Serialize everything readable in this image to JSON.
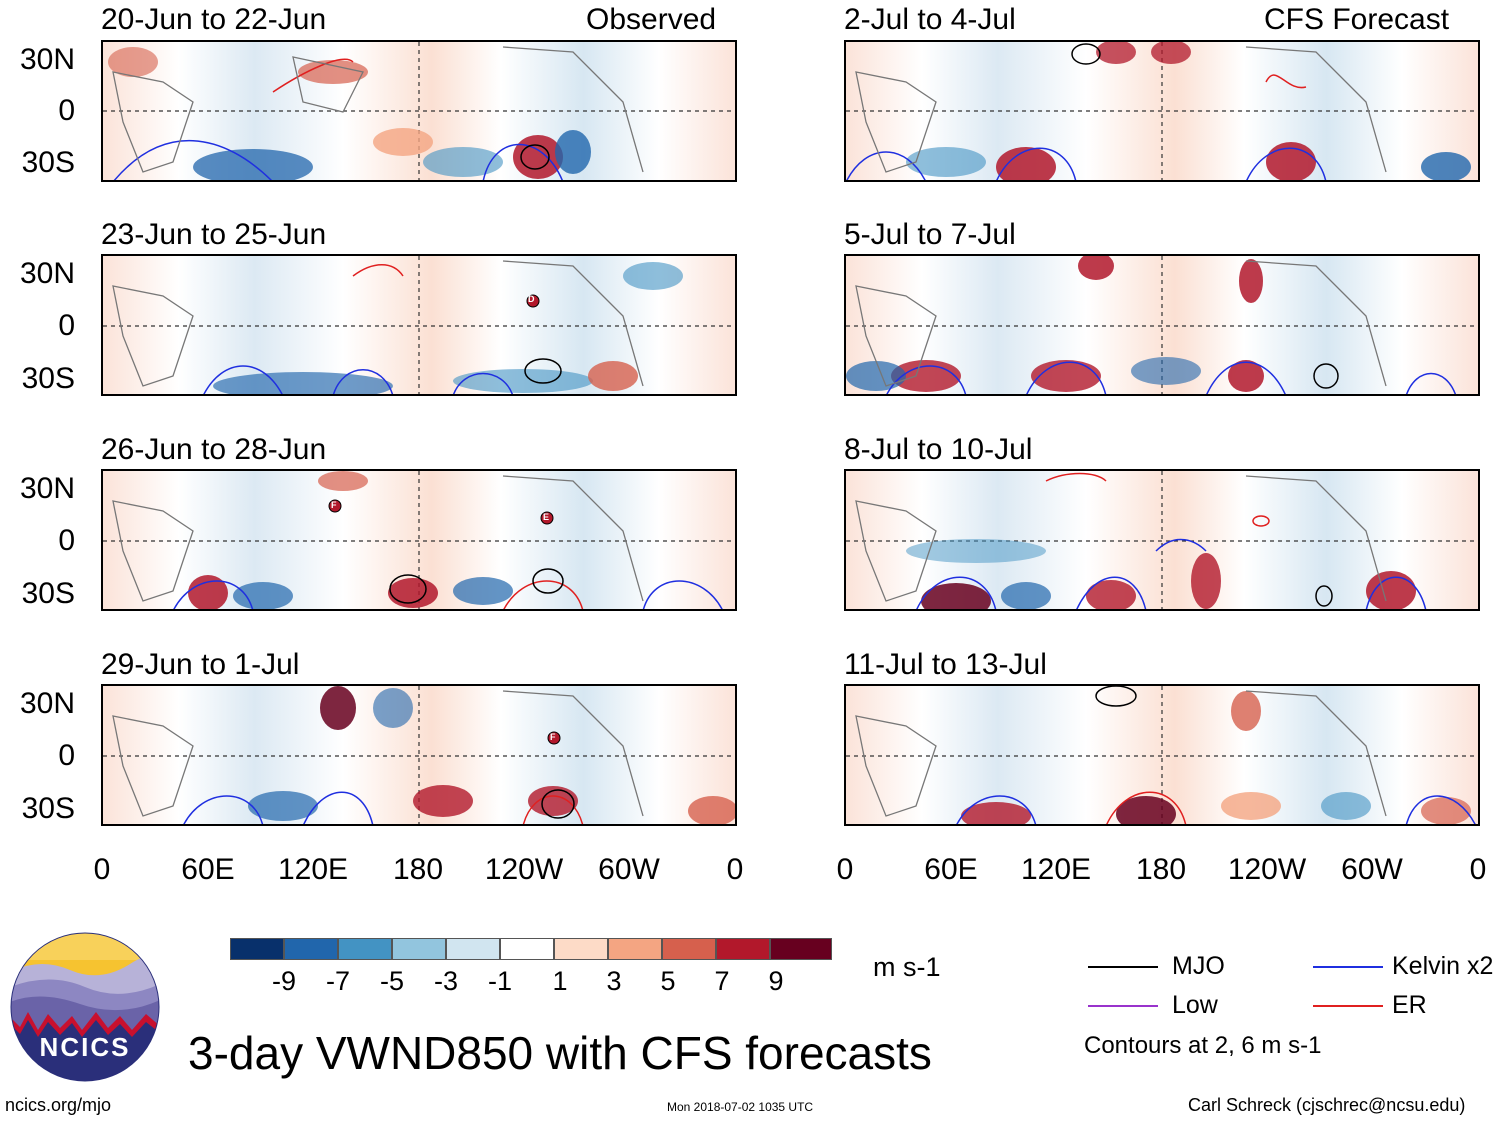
{
  "observed_label": "Observed",
  "forecast_label": "CFS Forecast",
  "panels_observed": [
    {
      "title": "20-Jun to 22-Jun"
    },
    {
      "title": "23-Jun to 25-Jun"
    },
    {
      "title": "26-Jun to 28-Jun"
    },
    {
      "title": "29-Jun to 1-Jul"
    }
  ],
  "panels_forecast": [
    {
      "title": "2-Jul to 4-Jul"
    },
    {
      "title": "5-Jul to 7-Jul"
    },
    {
      "title": "8-Jul to 10-Jul"
    },
    {
      "title": "11-Jul to 13-Jul"
    }
  ],
  "y_labels": [
    "30N",
    "0",
    "30S"
  ],
  "x_labels": [
    "0",
    "60E",
    "120E",
    "180",
    "120W",
    "60W",
    "0"
  ],
  "colorbar": {
    "colors": [
      "#08306b",
      "#2166ac",
      "#4393c3",
      "#92c5de",
      "#d1e5f0",
      "#ffffff",
      "#fddbc7",
      "#f4a582",
      "#d6604d",
      "#b2182b",
      "#67001f"
    ],
    "labels": [
      "-9",
      "-7",
      "-5",
      "-3",
      "-1",
      "1",
      "3",
      "5",
      "7",
      "9"
    ],
    "units": "m s-1"
  },
  "legend": {
    "mjo": "MJO",
    "kelvin": "Kelvin x2",
    "low": "Low",
    "er": "ER",
    "mjo_color": "#000000",
    "kelvin_color": "#1f2fe0",
    "low_color": "#9933cc",
    "er_color": "#e02020",
    "contours_note": "Contours at 2, 6 m s-1"
  },
  "storm_markers": [
    "D",
    "F",
    "E",
    "F"
  ],
  "logo_text": "NCICS",
  "main_title": "3-day VWND850 with CFS forecasts",
  "footer_left": "ncics.org/mjo",
  "footer_center": "Mon 2018-07-02 1035 UTC",
  "footer_right": "Carl Schreck (cjschrec@ncsu.edu)"
}
